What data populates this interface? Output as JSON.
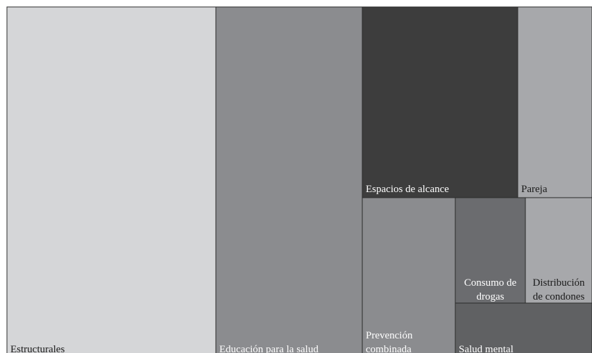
{
  "chart_data": {
    "type": "treemap",
    "title": "",
    "tiles": [
      {
        "id": "estructurales",
        "lines": [
          "Estructurales"
        ],
        "value": 301,
        "color": "#d5d6d8",
        "text_color": "#1a1a1a",
        "align": "left"
      },
      {
        "id": "educacion-salud",
        "lines": [
          "Educación para la salud"
        ],
        "value": 211,
        "color": "#8b8c8f",
        "text_color": "#ffffff",
        "align": "left"
      },
      {
        "id": "espacios-alcance",
        "lines": [
          "Espacios de alcance"
        ],
        "value": 61,
        "color": "#3d3d3d",
        "text_color": "#ffffff",
        "align": "left"
      },
      {
        "id": "pareja",
        "lines": [
          "Pareja"
        ],
        "value": 28,
        "color": "#a7a8ab",
        "text_color": "#1a1a1a",
        "align": "left"
      },
      {
        "id": "prevencion-combinada",
        "lines": [
          "Prevención",
          "combinada"
        ],
        "value": 29,
        "color": "#8b8c8f",
        "text_color": "#ffffff",
        "align": "left"
      },
      {
        "id": "consumo-drogas",
        "lines": [
          "Consumo de",
          "drogas"
        ],
        "value": 15,
        "color": "#6b6c6f",
        "text_color": "#ffffff",
        "align": "center"
      },
      {
        "id": "distribucion-condones",
        "lines": [
          "Distribución",
          "de condones"
        ],
        "value": 15,
        "color": "#a7a8ab",
        "text_color": "#1a1a1a",
        "align": "center"
      },
      {
        "id": "salud-mental",
        "lines": [
          "Salud mental"
        ],
        "value": 14,
        "color": "#606163",
        "text_color": "#ffffff",
        "align": "left"
      }
    ]
  }
}
